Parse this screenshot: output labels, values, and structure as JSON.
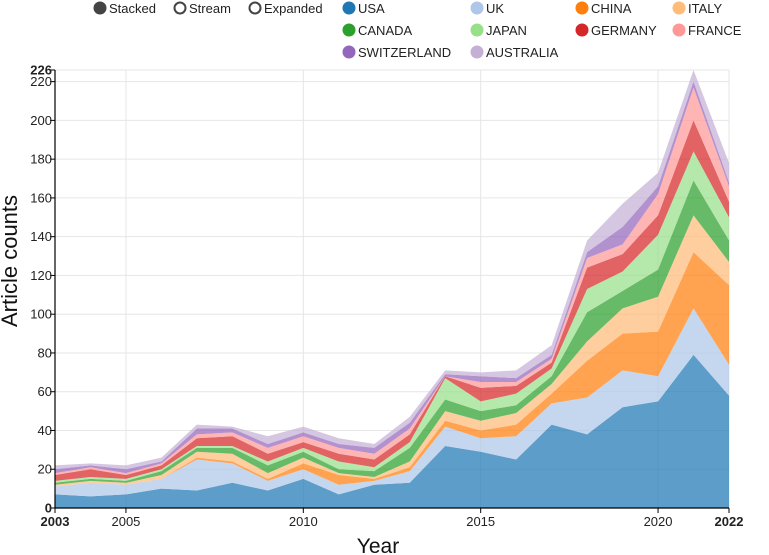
{
  "controls": {
    "modes": [
      {
        "label": "Stacked",
        "selected": true
      },
      {
        "label": "Stream",
        "selected": false
      },
      {
        "label": "Expanded",
        "selected": false
      }
    ]
  },
  "chart_data": {
    "type": "area",
    "stacked": true,
    "xlabel": "Year",
    "ylabel": "Article counts",
    "x": [
      2003,
      2004,
      2005,
      2006,
      2007,
      2008,
      2009,
      2010,
      2011,
      2012,
      2013,
      2014,
      2015,
      2016,
      2017,
      2018,
      2019,
      2020,
      2021,
      2022
    ],
    "xlim": [
      2003,
      2022
    ],
    "ylim": [
      0,
      226
    ],
    "x_ticks": [
      {
        "value": 2003,
        "label": "2003",
        "bold": true
      },
      {
        "value": 2005,
        "label": "2005",
        "bold": false
      },
      {
        "value": 2010,
        "label": "2010",
        "bold": false
      },
      {
        "value": 2015,
        "label": "2015",
        "bold": false
      },
      {
        "value": 2020,
        "label": "2020",
        "bold": false
      },
      {
        "value": 2022,
        "label": "2022",
        "bold": true
      }
    ],
    "y_ticks": [
      {
        "value": 0,
        "label": "0",
        "bold": true
      },
      {
        "value": 20,
        "label": "20",
        "bold": false
      },
      {
        "value": 40,
        "label": "40",
        "bold": false
      },
      {
        "value": 60,
        "label": "60",
        "bold": false
      },
      {
        "value": 80,
        "label": "80",
        "bold": false
      },
      {
        "value": 100,
        "label": "100",
        "bold": false
      },
      {
        "value": 120,
        "label": "120",
        "bold": false
      },
      {
        "value": 140,
        "label": "140",
        "bold": false
      },
      {
        "value": 160,
        "label": "160",
        "bold": false
      },
      {
        "value": 180,
        "label": "180",
        "bold": false
      },
      {
        "value": 200,
        "label": "200",
        "bold": false
      },
      {
        "value": 220,
        "label": "220",
        "bold": false
      },
      {
        "value": 226,
        "label": "226",
        "bold": true
      }
    ],
    "series": [
      {
        "name": "USA",
        "color": "#1f77b4",
        "values": [
          7,
          6,
          7,
          10,
          9,
          13,
          9,
          15,
          7,
          12,
          13,
          32,
          29,
          25,
          43,
          38,
          52,
          55,
          79,
          58
        ]
      },
      {
        "name": "UK",
        "color": "#aec7e8",
        "values": [
          4,
          7,
          5,
          5,
          16,
          10,
          5,
          5,
          5,
          2,
          6,
          10,
          7,
          12,
          11,
          19,
          19,
          13,
          24,
          16
        ]
      },
      {
        "name": "CHINA",
        "color": "#ff7f0e",
        "values": [
          0,
          0,
          0,
          0,
          1,
          1,
          1,
          3,
          5,
          1,
          2,
          3,
          4,
          6,
          5,
          19,
          19,
          23,
          29,
          41
        ]
      },
      {
        "name": "ITALY",
        "color": "#ffbb78",
        "values": [
          1,
          1,
          1,
          2,
          3,
          4,
          3,
          3,
          1,
          1,
          3,
          5,
          5,
          6,
          5,
          10,
          13,
          18,
          19,
          12
        ]
      },
      {
        "name": "CANADA",
        "color": "#2ca02c",
        "values": [
          1,
          1,
          1,
          2,
          2,
          3,
          4,
          3,
          2,
          3,
          7,
          6,
          5,
          4,
          4,
          15,
          9,
          14,
          18,
          11
        ]
      },
      {
        "name": "JAPAN",
        "color": "#98df8a",
        "values": [
          1,
          1,
          1,
          1,
          1,
          1,
          2,
          2,
          4,
          2,
          3,
          11,
          5,
          6,
          4,
          12,
          10,
          18,
          15,
          12
        ]
      },
      {
        "name": "GERMANY",
        "color": "#d62728",
        "values": [
          3,
          4,
          2,
          2,
          4,
          5,
          4,
          3,
          4,
          4,
          4,
          1,
          7,
          4,
          3,
          11,
          9,
          10,
          16,
          8
        ]
      },
      {
        "name": "FRANCE",
        "color": "#ff9896",
        "values": [
          1,
          1,
          1,
          1,
          2,
          2,
          3,
          3,
          3,
          3,
          3,
          0,
          3,
          2,
          2,
          5,
          5,
          11,
          17,
          8
        ]
      },
      {
        "name": "SWITZERLAND",
        "color": "#9467bd",
        "values": [
          2,
          1,
          2,
          1,
          3,
          2,
          2,
          2,
          2,
          3,
          3,
          1,
          3,
          2,
          2,
          3,
          9,
          4,
          3,
          2
        ]
      },
      {
        "name": "AUSTRALIA",
        "color": "#c5b0d5",
        "values": [
          2,
          1,
          2,
          2,
          2,
          1,
          4,
          3,
          3,
          2,
          3,
          2,
          2,
          4,
          5,
          6,
          12,
          7,
          6,
          10
        ]
      }
    ]
  }
}
